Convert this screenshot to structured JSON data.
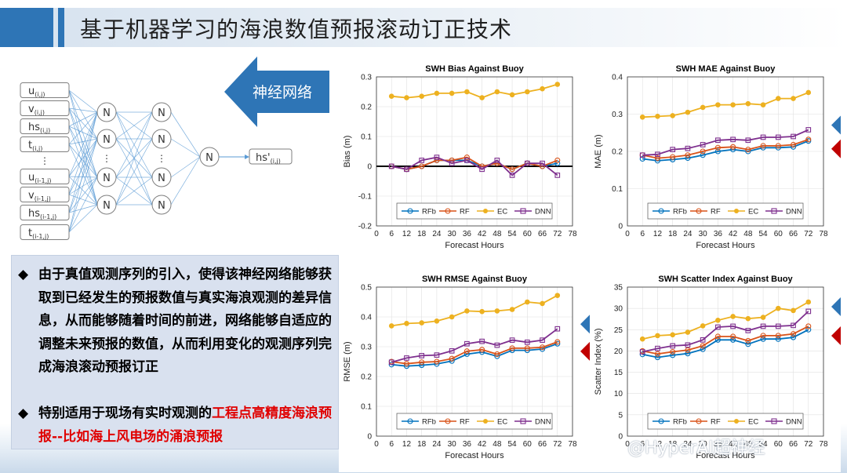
{
  "slide": {
    "title": "基于机器学习的海浪数值预报滚动订正技术",
    "arrow_label": "神经网络"
  },
  "network": {
    "inputs": [
      "u(i,j)",
      "v(i,j)",
      "hs(i,j)",
      "t(i,j)",
      "⋮",
      "u(i-1,j)",
      "v(i-1,j)",
      "hs(i-1,j)",
      "t(i-1,j)"
    ],
    "node_label": "N",
    "output": "hs'(i,j)"
  },
  "text": {
    "bullet_mark": "◆",
    "para1": "由于真值观测序列的引入，使得该神经网络能够获取到已经发生的预报数值与真实海浪观测的差异信息，从而能够随着时间的前进，网络能够自适应的调整未来预报的数值，从而利用变化的观测序列完成海浪滚动预报订正",
    "para2_prefix": "特别适用于现场有实时观测的",
    "para2_highlight": "工程点高精度海浪预报--比如海上风电场的涌浪预报"
  },
  "colors": {
    "RFb": "#0072bd",
    "RF": "#d95319",
    "EC": "#edb120",
    "DNN": "#7e2f8e",
    "arrow_blue": "#2e75b6",
    "arrow_red": "#c00000",
    "highlight_red": "#e00000"
  },
  "watermark": "@HyperAI超神经",
  "chart_data": [
    {
      "type": "line",
      "title": "SWH Bias Against Buoy",
      "xlabel": "Forecast Hours",
      "ylabel": "Bias (m)",
      "xlim": [
        0,
        78
      ],
      "ylim": [
        -0.2,
        0.3
      ],
      "xticks": [
        0,
        6,
        12,
        18,
        24,
        30,
        36,
        42,
        48,
        54,
        60,
        66,
        72,
        78
      ],
      "yticks": [
        -0.2,
        -0.1,
        0,
        0.1,
        0.2,
        0.3
      ],
      "yticklabels": [
        "-0.2",
        "-0.1",
        "0",
        "0.1",
        "0.2",
        "0.3"
      ],
      "zero_line": true,
      "x": [
        6,
        12,
        18,
        24,
        30,
        36,
        42,
        48,
        54,
        60,
        66,
        72
      ],
      "series": [
        {
          "name": "RFb",
          "values": [
            0.0,
            -0.01,
            0.0,
            0.02,
            0.02,
            0.02,
            0.0,
            0.01,
            -0.01,
            0.01,
            0.0,
            0.01
          ]
        },
        {
          "name": "RF",
          "values": [
            0.0,
            -0.01,
            0.0,
            0.02,
            0.02,
            0.03,
            0.0,
            0.01,
            -0.01,
            0.01,
            0.0,
            0.02
          ]
        },
        {
          "name": "EC",
          "values": [
            0.235,
            0.23,
            0.235,
            0.245,
            0.245,
            0.25,
            0.23,
            0.25,
            0.24,
            0.25,
            0.26,
            0.275
          ]
        },
        {
          "name": "DNN",
          "values": [
            0.0,
            -0.01,
            0.02,
            0.03,
            0.01,
            0.02,
            -0.01,
            0.02,
            -0.03,
            0.01,
            0.01,
            -0.03
          ]
        }
      ],
      "legend": "bottom"
    },
    {
      "type": "line",
      "title": "SWH MAE Against Buoy",
      "xlabel": "Forecast Hours",
      "ylabel": "MAE (m)",
      "xlim": [
        0,
        78
      ],
      "ylim": [
        0,
        0.4
      ],
      "xticks": [
        0,
        6,
        12,
        18,
        24,
        30,
        36,
        42,
        48,
        54,
        60,
        66,
        72,
        78
      ],
      "yticks": [
        0,
        0.1,
        0.2,
        0.3,
        0.4
      ],
      "yticklabels": [
        "0",
        "0.1",
        "0.2",
        "0.3",
        "0.4"
      ],
      "x": [
        6,
        12,
        18,
        24,
        30,
        36,
        42,
        48,
        54,
        60,
        66,
        72
      ],
      "series": [
        {
          "name": "RFb",
          "values": [
            0.18,
            0.175,
            0.178,
            0.182,
            0.19,
            0.2,
            0.205,
            0.2,
            0.21,
            0.21,
            0.212,
            0.228
          ]
        },
        {
          "name": "RF",
          "values": [
            0.19,
            0.182,
            0.185,
            0.19,
            0.2,
            0.21,
            0.212,
            0.205,
            0.215,
            0.215,
            0.218,
            0.232
          ]
        },
        {
          "name": "EC",
          "values": [
            0.292,
            0.294,
            0.296,
            0.305,
            0.318,
            0.325,
            0.325,
            0.328,
            0.325,
            0.342,
            0.342,
            0.358
          ]
        },
        {
          "name": "DNN",
          "values": [
            0.19,
            0.192,
            0.205,
            0.208,
            0.218,
            0.23,
            0.232,
            0.23,
            0.238,
            0.238,
            0.24,
            0.258
          ]
        }
      ],
      "legend": "bottom",
      "markers": [
        "blue-arrow",
        "red-arrow"
      ]
    },
    {
      "type": "line",
      "title": "SWH RMSE Against Buoy",
      "xlabel": "Forecast Hours",
      "ylabel": "RMSE (m)",
      "xlim": [
        0,
        78
      ],
      "ylim": [
        0,
        0.5
      ],
      "xticks": [
        0,
        6,
        12,
        18,
        24,
        30,
        36,
        42,
        48,
        54,
        60,
        66,
        72,
        78
      ],
      "yticks": [
        0,
        0.1,
        0.2,
        0.3,
        0.4,
        0.5
      ],
      "yticklabels": [
        "0",
        "0.1",
        "0.2",
        "0.3",
        "0.4",
        "0.5"
      ],
      "x": [
        6,
        12,
        18,
        24,
        30,
        36,
        42,
        48,
        54,
        60,
        66,
        72
      ],
      "series": [
        {
          "name": "RFb",
          "values": [
            0.24,
            0.235,
            0.238,
            0.242,
            0.252,
            0.275,
            0.282,
            0.268,
            0.288,
            0.288,
            0.292,
            0.31
          ]
        },
        {
          "name": "RF",
          "values": [
            0.25,
            0.243,
            0.248,
            0.25,
            0.26,
            0.285,
            0.29,
            0.275,
            0.295,
            0.295,
            0.298,
            0.316
          ]
        },
        {
          "name": "EC",
          "values": [
            0.37,
            0.378,
            0.38,
            0.386,
            0.4,
            0.42,
            0.418,
            0.42,
            0.425,
            0.45,
            0.445,
            0.472
          ]
        },
        {
          "name": "DNN",
          "values": [
            0.248,
            0.262,
            0.27,
            0.272,
            0.286,
            0.31,
            0.318,
            0.305,
            0.322,
            0.315,
            0.322,
            0.36
          ]
        }
      ],
      "legend": "bottom",
      "markers": [
        "blue-arrow",
        "red-arrow"
      ]
    },
    {
      "type": "line",
      "title": "SWH Scatter Index Against Buoy",
      "xlabel": "Forecast Hours",
      "ylabel": "Scatter Index (%)",
      "xlim": [
        0,
        78
      ],
      "ylim": [
        0,
        35
      ],
      "xticks": [
        0,
        6,
        12,
        18,
        24,
        30,
        36,
        42,
        48,
        54,
        60,
        66,
        72,
        78
      ],
      "yticks": [
        0,
        5,
        10,
        15,
        20,
        25,
        30,
        35
      ],
      "yticklabels": [
        "0",
        "5",
        "10",
        "15",
        "20",
        "25",
        "30",
        "35"
      ],
      "x": [
        6,
        12,
        18,
        24,
        30,
        36,
        42,
        48,
        54,
        60,
        66,
        72
      ],
      "series": [
        {
          "name": "RFb",
          "values": [
            19.2,
            18.5,
            19.0,
            19.4,
            20.4,
            22.6,
            22.6,
            21.6,
            22.8,
            22.8,
            23.2,
            25.0
          ]
        },
        {
          "name": "RF",
          "values": [
            20.0,
            19.3,
            19.8,
            20.2,
            21.2,
            23.4,
            23.4,
            22.4,
            23.6,
            23.6,
            24.0,
            25.8
          ]
        },
        {
          "name": "EC",
          "values": [
            22.8,
            23.6,
            23.8,
            24.4,
            25.9,
            27.2,
            28.1,
            27.6,
            27.9,
            30.0,
            29.5,
            31.5
          ]
        },
        {
          "name": "DNN",
          "values": [
            19.8,
            20.6,
            21.2,
            21.4,
            22.6,
            25.6,
            25.8,
            24.8,
            25.8,
            25.8,
            26.0,
            29.3
          ]
        }
      ],
      "legend": "bottom",
      "markers": [
        "blue-arrow",
        "red-arrow"
      ]
    }
  ]
}
